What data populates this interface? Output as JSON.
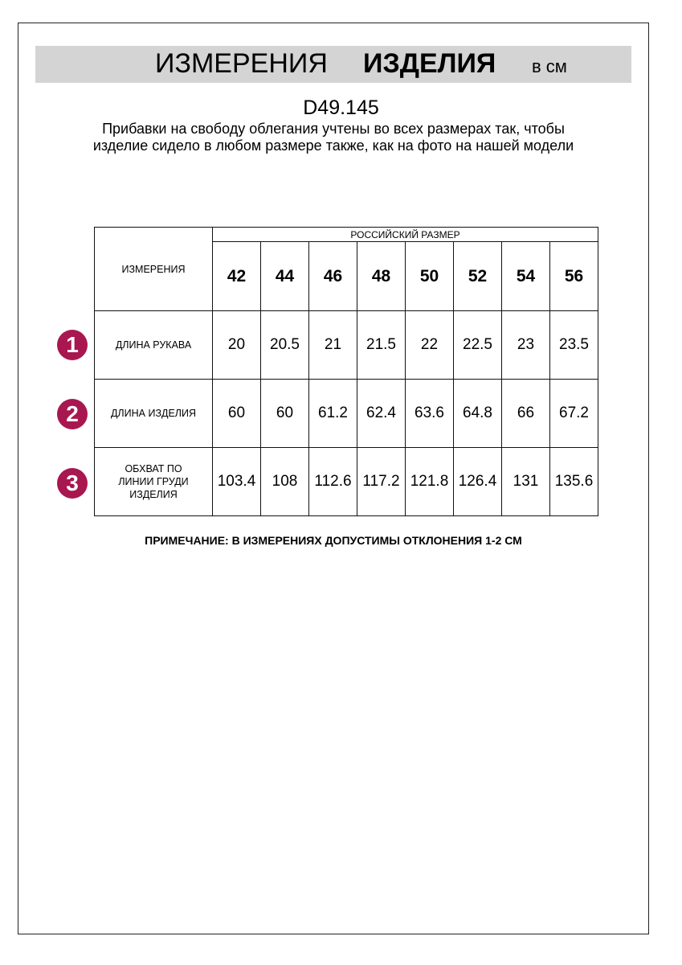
{
  "header": {
    "title_regular": "ИЗМЕРЕНИЯ",
    "title_bold": "ИЗДЕЛИЯ",
    "unit": "в см"
  },
  "article": "D49.145",
  "description": "Прибавки на свободу облегания учтены во всех размерах так, чтобы изделие сидело в любом размере также, как на фото на нашей модели",
  "table": {
    "measurements_header": "ИЗМЕРЕНИЯ",
    "size_group_header": "РОССИЙСКИЙ РАЗМЕР",
    "sizes": [
      "42",
      "44",
      "46",
      "48",
      "50",
      "52",
      "54",
      "56"
    ],
    "rows": [
      {
        "number": "1",
        "label": "ДЛИНА РУКАВА",
        "values": [
          "20",
          "20.5",
          "21",
          "21.5",
          "22",
          "22.5",
          "23",
          "23.5"
        ]
      },
      {
        "number": "2",
        "label": "ДЛИНА ИЗДЕЛИЯ",
        "values": [
          "60",
          "60",
          "61.2",
          "62.4",
          "63.6",
          "64.8",
          "66",
          "67.2"
        ]
      },
      {
        "number": "3",
        "label": "ОБХВАТ ПО ЛИНИИ ГРУДИ ИЗДЕЛИЯ",
        "values": [
          "103.4",
          "108",
          "112.6",
          "117.2",
          "121.8",
          "126.4",
          "131",
          "135.6"
        ]
      }
    ]
  },
  "note": "ПРИМЕЧАНИЕ: В ИЗМЕРЕНИЯХ ДОПУСТИМЫ ОТКЛОНЕНИЯ 1-2 СМ",
  "colors": {
    "badge": "#a8174f",
    "band": "#d4d4d4"
  }
}
